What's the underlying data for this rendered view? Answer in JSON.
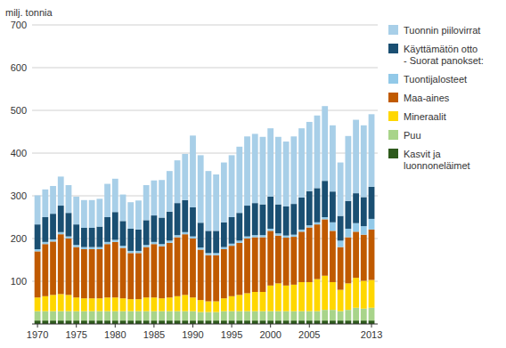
{
  "chart_data": {
    "type": "bar",
    "stacked": true,
    "ylabel": "milj. tonnia",
    "x": [
      1970,
      1971,
      1972,
      1973,
      1974,
      1975,
      1976,
      1977,
      1978,
      1979,
      1980,
      1981,
      1982,
      1983,
      1984,
      1985,
      1986,
      1987,
      1988,
      1989,
      1990,
      1991,
      1992,
      1993,
      1994,
      1995,
      1996,
      1997,
      1998,
      1999,
      2000,
      2001,
      2002,
      2003,
      2004,
      2005,
      2006,
      2007,
      2008,
      2009,
      2010,
      2011,
      2012,
      2013
    ],
    "xlim": [
      1969.3,
      2013.8
    ],
    "xticks": [
      1970,
      1975,
      1980,
      1985,
      1990,
      1995,
      2000,
      2005,
      2013
    ],
    "ylim": [
      0,
      700
    ],
    "yticks": [
      100,
      200,
      300,
      400,
      500,
      600,
      700
    ],
    "grid": true,
    "legend": "right",
    "series": [
      {
        "name": "Kasvit ja\nluonnoneläimet",
        "color": "#2e5a1c",
        "values": [
          8,
          8,
          8,
          8,
          8,
          8,
          8,
          8,
          8,
          8,
          8,
          8,
          8,
          8,
          8,
          8,
          8,
          8,
          8,
          8,
          8,
          8,
          8,
          8,
          8,
          8,
          8,
          8,
          8,
          8,
          8,
          8,
          8,
          8,
          8,
          8,
          8,
          8,
          8,
          8,
          8,
          8,
          8,
          8
        ]
      },
      {
        "name": "Puu",
        "color": "#a8d48a",
        "values": [
          22,
          22,
          22,
          22,
          22,
          22,
          22,
          22,
          22,
          22,
          22,
          22,
          22,
          22,
          22,
          22,
          22,
          22,
          22,
          22,
          22,
          20,
          20,
          20,
          22,
          22,
          22,
          22,
          22,
          22,
          22,
          22,
          22,
          22,
          22,
          22,
          22,
          25,
          25,
          22,
          25,
          30,
          28,
          30
        ]
      },
      {
        "name": "Mineraalit",
        "color": "#ffd700",
        "values": [
          32,
          35,
          38,
          40,
          38,
          32,
          30,
          30,
          30,
          32,
          32,
          30,
          28,
          28,
          32,
          32,
          30,
          32,
          35,
          38,
          32,
          28,
          25,
          25,
          30,
          35,
          38,
          42,
          45,
          45,
          60,
          65,
          60,
          62,
          68,
          68,
          75,
          80,
          65,
          50,
          62,
          70,
          65,
          65
        ]
      },
      {
        "name": "Maa-aines",
        "color": "#c05a00",
        "values": [
          108,
          122,
          125,
          140,
          132,
          118,
          115,
          115,
          115,
          125,
          130,
          118,
          108,
          108,
          118,
          125,
          122,
          128,
          138,
          142,
          138,
          118,
          108,
          108,
          115,
          118,
          122,
          128,
          128,
          128,
          128,
          112,
          112,
          112,
          118,
          128,
          128,
          132,
          120,
          100,
          108,
          108,
          108,
          118
        ]
      },
      {
        "name": "Tuontijalosteet",
        "color": "#92c9e8",
        "values": [
          5,
          5,
          5,
          5,
          5,
          5,
          5,
          5,
          5,
          5,
          5,
          5,
          5,
          5,
          5,
          5,
          5,
          5,
          5,
          5,
          5,
          5,
          5,
          5,
          5,
          5,
          5,
          5,
          5,
          5,
          5,
          5,
          5,
          5,
          5,
          5,
          5,
          5,
          20,
          15,
          20,
          20,
          20,
          25
        ]
      },
      {
        "name": "Käyttämätön otto\n- Suorat panokset:",
        "color": "#1a4f72",
        "values": [
          58,
          58,
          60,
          62,
          55,
          48,
          45,
          45,
          48,
          58,
          65,
          58,
          52,
          50,
          58,
          62,
          62,
          68,
          75,
          75,
          68,
          58,
          52,
          52,
          58,
          62,
          65,
          72,
          75,
          72,
          75,
          68,
          68,
          72,
          75,
          80,
          80,
          85,
          72,
          58,
          65,
          70,
          68,
          75
        ]
      },
      {
        "name": "Tuonnin piilovirrat",
        "color": "#a8cfe8",
        "values": [
          68,
          65,
          65,
          68,
          65,
          65,
          65,
          65,
          65,
          78,
          78,
          62,
          62,
          68,
          82,
          82,
          88,
          95,
          100,
          108,
          168,
          158,
          140,
          132,
          140,
          145,
          155,
          162,
          162,
          158,
          160,
          158,
          152,
          158,
          162,
          162,
          170,
          175,
          155,
          125,
          152,
          172,
          168,
          170
        ]
      }
    ]
  }
}
